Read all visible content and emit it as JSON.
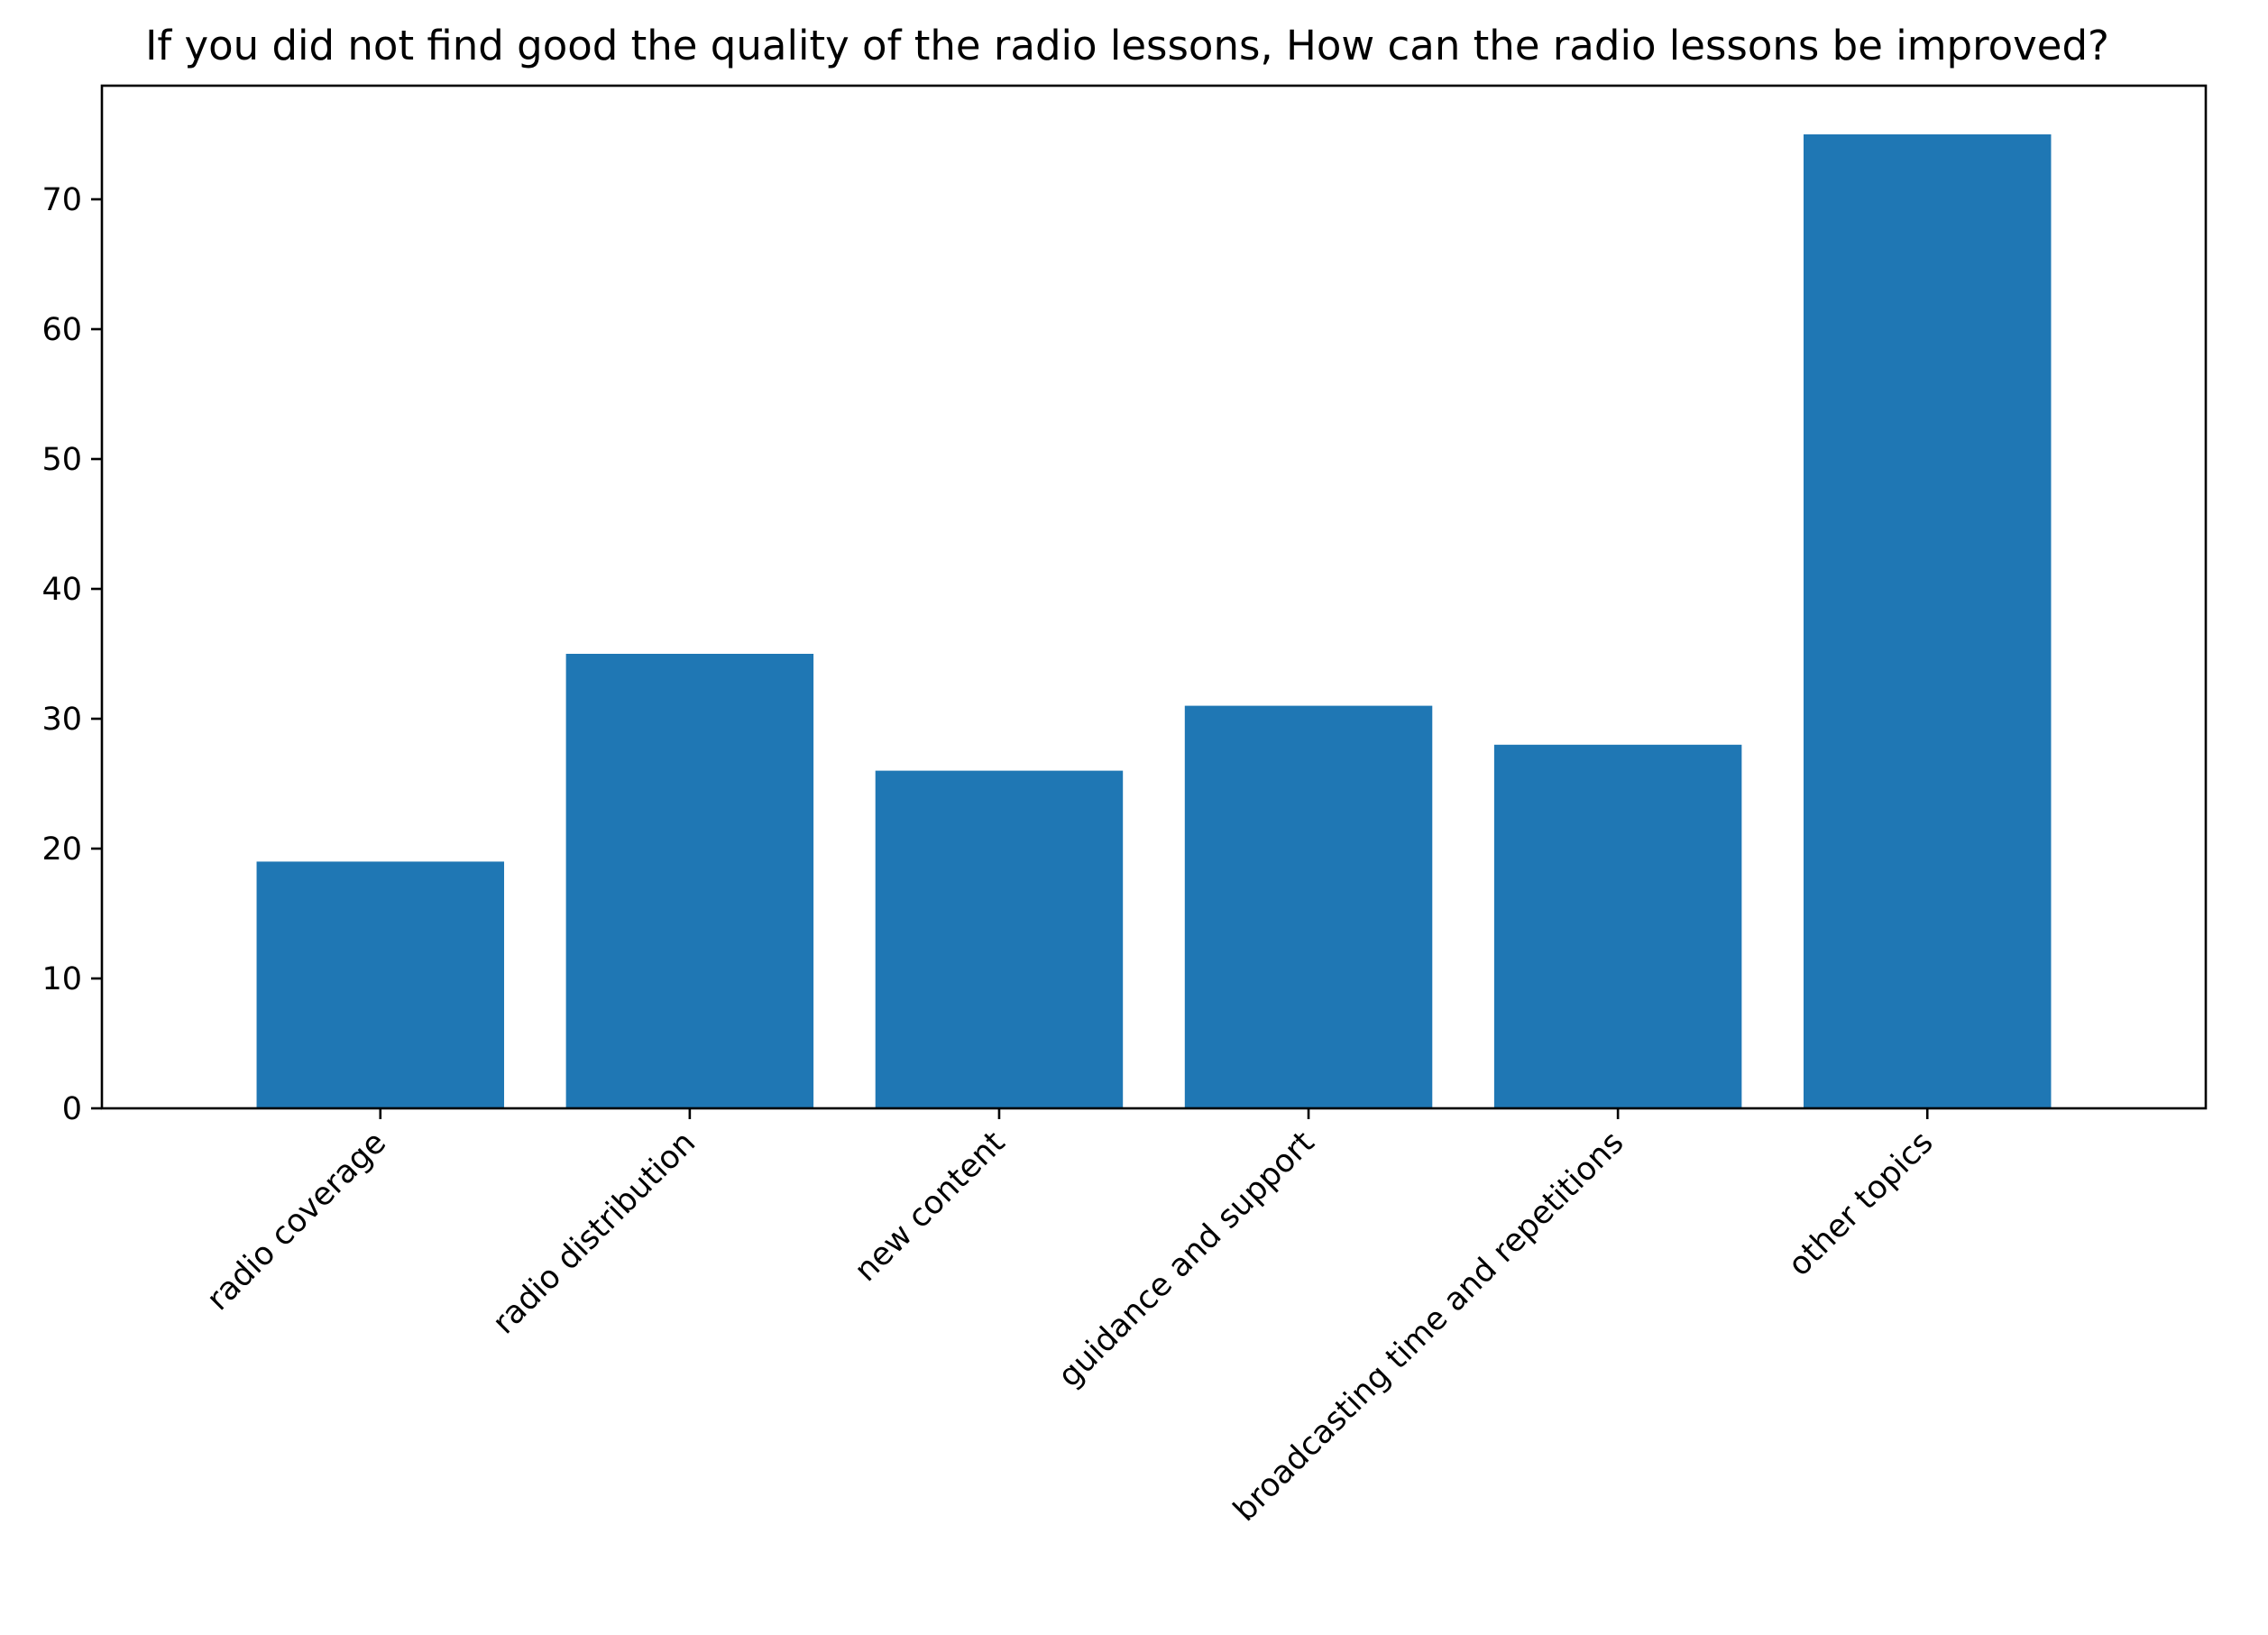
{
  "chart_data": {
    "type": "bar",
    "title": "If you did not find good the quality of the radio lessons, How can the radio lessons be improved?",
    "xlabel": "",
    "ylabel": "",
    "categories": [
      "radio coverage",
      "radio distribution",
      "new content",
      "guidance and support",
      "broadcasting time and repetitions",
      "other topics"
    ],
    "values": [
      19,
      35,
      26,
      31,
      28,
      75
    ],
    "ylim": [
      0,
      78.75
    ],
    "yticks": [
      0,
      10,
      20,
      30,
      40,
      50,
      60,
      70
    ],
    "grid": false,
    "legend": "none",
    "bar_color": "#1f77b4"
  }
}
